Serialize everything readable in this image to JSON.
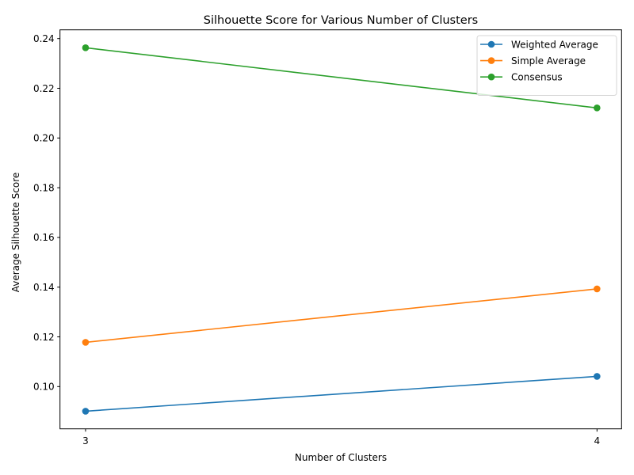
{
  "chart_data": {
    "type": "line",
    "title": "Silhouette Score for Various Number of Clusters",
    "xlabel": "Number of Clusters",
    "ylabel": "Average Silhouette Score",
    "x": [
      3,
      4
    ],
    "x_tick_labels": [
      "3",
      "4"
    ],
    "y_ticks": [
      0.1,
      0.12,
      0.14,
      0.16,
      0.18,
      0.2,
      0.22,
      0.24
    ],
    "y_tick_labels": [
      "0.10",
      "0.12",
      "0.14",
      "0.16",
      "0.18",
      "0.20",
      "0.22",
      "0.24"
    ],
    "ylim": [
      0.083,
      0.2435
    ],
    "xlim": [
      2.95,
      4.048
    ],
    "grid": false,
    "legend_position": "upper right",
    "series": [
      {
        "name": "Weighted Average",
        "color": "#1f77b4",
        "marker": "circle",
        "values": [
          0.0901,
          0.1041
        ]
      },
      {
        "name": "Simple Average",
        "color": "#ff7f0e",
        "marker": "circle",
        "values": [
          0.1178,
          0.1393
        ]
      },
      {
        "name": "Consensus",
        "color": "#2ca02c",
        "marker": "circle",
        "values": [
          0.2363,
          0.2121
        ]
      }
    ]
  }
}
